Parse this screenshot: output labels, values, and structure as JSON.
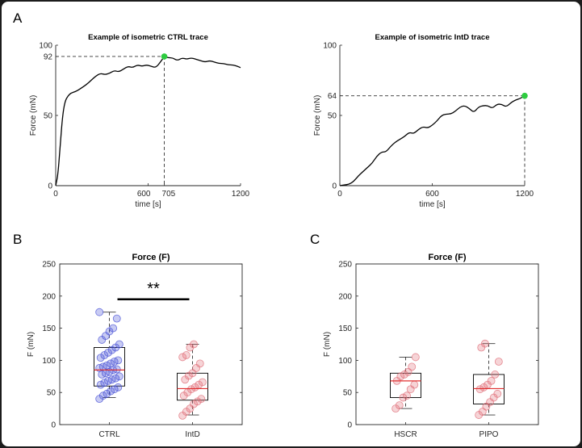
{
  "panel_labels": [
    "A",
    "B",
    "C"
  ],
  "colors": {
    "trace": "#000000",
    "peak_marker": "#2ecc40",
    "ctrl_points": "#4a52d6",
    "intd_points": "#e0707a",
    "median": "#e03030",
    "box": "#000000"
  },
  "chart_data": [
    {
      "id": "A-left",
      "type": "line",
      "title": "Example of isometric CTRL trace",
      "xlabel": "time [s]",
      "ylabel": "Force (mN)",
      "xlim": [
        0,
        1200
      ],
      "ylim": [
        0,
        100
      ],
      "xticks": [
        0,
        600,
        705,
        1200
      ],
      "yticks": [
        0,
        50,
        92,
        100
      ],
      "grid": false,
      "series": [
        {
          "x": [
            0,
            15,
            30,
            45,
            60,
            80,
            100,
            130,
            160,
            200,
            230,
            260,
            290,
            320,
            350,
            380,
            410,
            440,
            470,
            500,
            530,
            560,
            590,
            620,
            650,
            680,
            705,
            730,
            760,
            790,
            820,
            850,
            880,
            910,
            940,
            970,
            1000,
            1030,
            1060,
            1090,
            1120,
            1150,
            1180,
            1200
          ],
          "y": [
            0,
            8,
            30,
            50,
            60,
            64,
            66,
            67,
            69,
            72,
            75,
            78,
            80,
            79,
            80,
            82,
            81,
            83,
            85,
            84,
            86,
            85,
            86,
            85,
            84,
            88,
            92,
            91,
            91,
            89,
            91,
            90,
            91,
            90,
            89,
            88,
            89,
            88,
            87,
            87,
            86,
            86,
            85,
            84
          ]
        }
      ],
      "annotations": [
        {
          "x": 705,
          "y": 92
        }
      ]
    },
    {
      "id": "A-right",
      "type": "line",
      "title": "Example of isometric IntD trace",
      "xlabel": "time [s]",
      "ylabel": "Force (mN)",
      "xlim": [
        0,
        1200
      ],
      "ylim": [
        0,
        100
      ],
      "xticks": [
        0,
        600,
        1200
      ],
      "yticks": [
        0,
        50,
        64,
        100
      ],
      "grid": false,
      "series": [
        {
          "x": [
            0,
            30,
            60,
            90,
            120,
            150,
            180,
            210,
            240,
            270,
            300,
            330,
            360,
            390,
            420,
            450,
            480,
            510,
            540,
            570,
            600,
            630,
            660,
            690,
            720,
            750,
            780,
            810,
            840,
            870,
            900,
            930,
            960,
            990,
            1020,
            1050,
            1080,
            1110,
            1140,
            1170,
            1200
          ],
          "y": [
            0,
            0.5,
            1,
            3,
            7,
            10,
            13,
            16,
            21,
            24,
            24,
            28,
            31,
            33,
            35,
            38,
            37,
            40,
            42,
            41,
            43,
            46,
            50,
            51,
            51,
            53,
            56,
            57,
            55,
            52,
            56,
            57,
            57,
            55,
            58,
            58,
            56,
            59,
            61,
            62,
            64
          ]
        }
      ],
      "annotations": [
        {
          "x": 1200,
          "y": 64
        }
      ]
    },
    {
      "id": "B",
      "type": "box",
      "title": "Force (F)",
      "ylabel": "F (mN)",
      "ylim": [
        0,
        250
      ],
      "yticks": [
        0,
        50,
        100,
        150,
        200,
        250
      ],
      "categories": [
        "CTRL",
        "IntD"
      ],
      "boxes": [
        {
          "q1": 60,
          "median": 85,
          "q3": 120,
          "whisker_low": 42,
          "whisker_high": 175,
          "color": "ctrl_points",
          "points": [
            40,
            45,
            48,
            52,
            55,
            58,
            62,
            65,
            68,
            70,
            72,
            75,
            78,
            80,
            82,
            85,
            86,
            88,
            90,
            92,
            95,
            98,
            100,
            104,
            108,
            112,
            116,
            120,
            125,
            132,
            138,
            145,
            150,
            165,
            175
          ]
        },
        {
          "q1": 38,
          "median": 56,
          "q3": 80,
          "whisker_low": 15,
          "whisker_high": 125,
          "color": "intd_points",
          "points": [
            14,
            20,
            25,
            32,
            36,
            40,
            45,
            50,
            55,
            58,
            62,
            66,
            70,
            76,
            80,
            88,
            95,
            105,
            108,
            120,
            125
          ]
        }
      ],
      "significance": "**"
    },
    {
      "id": "C",
      "type": "box",
      "title": "Force (F)",
      "ylabel": "F (mN)",
      "ylim": [
        0,
        250
      ],
      "yticks": [
        0,
        50,
        100,
        150,
        200,
        250
      ],
      "categories": [
        "HSCR",
        "PIPO"
      ],
      "boxes": [
        {
          "q1": 42,
          "median": 68,
          "q3": 80,
          "whisker_low": 25,
          "whisker_high": 105,
          "color": "intd_points",
          "points": [
            25,
            30,
            42,
            45,
            55,
            62,
            68,
            75,
            78,
            82,
            90,
            105
          ]
        },
        {
          "q1": 32,
          "median": 56,
          "q3": 78,
          "whisker_low": 15,
          "whisker_high": 126,
          "color": "intd_points",
          "points": [
            15,
            20,
            28,
            35,
            42,
            48,
            55,
            58,
            62,
            68,
            78,
            98,
            120,
            126
          ]
        }
      ]
    }
  ]
}
